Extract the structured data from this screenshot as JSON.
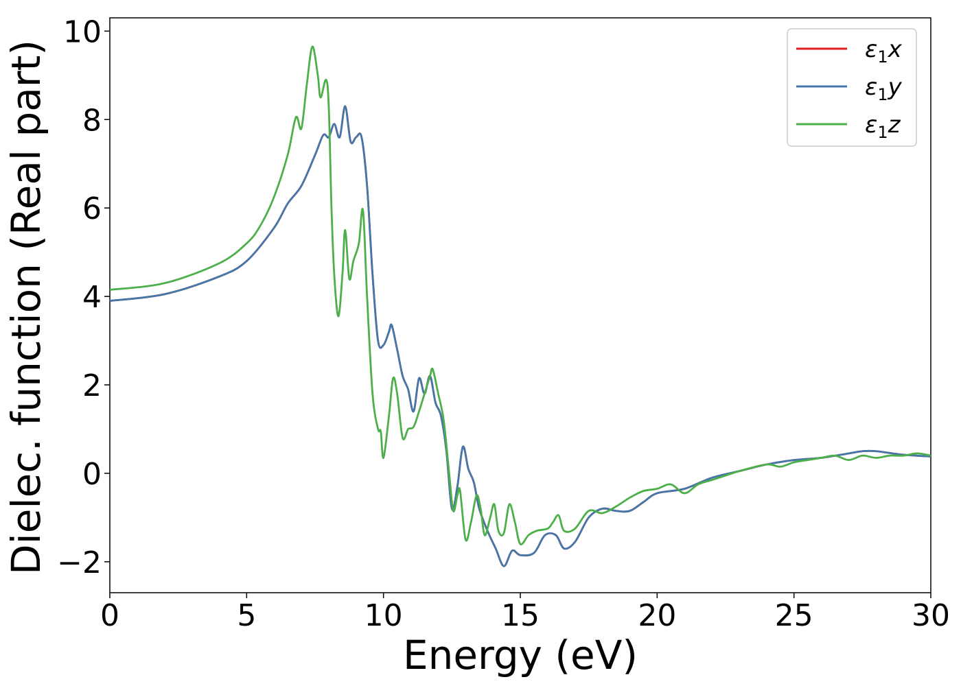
{
  "chart_data": {
    "type": "line",
    "xlabel": "Energy (eV)",
    "ylabel": "Dielec. function (Real part)",
    "xlim": [
      0,
      30
    ],
    "ylim": [
      -2.7,
      10.3
    ],
    "xticks": [
      0,
      5,
      10,
      15,
      20,
      25,
      30
    ],
    "xtick_labels": [
      "0",
      "5",
      "10",
      "15",
      "20",
      "25",
      "30"
    ],
    "yticks": [
      -2,
      0,
      2,
      4,
      6,
      8,
      10
    ],
    "ytick_labels": [
      "−2",
      "0",
      "2",
      "4",
      "6",
      "8",
      "10"
    ],
    "grid": false,
    "legend_position": "top-right",
    "series": [
      {
        "name": "ε₁x",
        "label_base": "ε",
        "label_sub": "1",
        "label_var": "x",
        "color": "#e41a1c",
        "points": [
          [
            0,
            3.9
          ],
          [
            2,
            4.05
          ],
          [
            4,
            4.45
          ],
          [
            5,
            4.8
          ],
          [
            6,
            5.55
          ],
          [
            6.5,
            6.1
          ],
          [
            7,
            6.5
          ],
          [
            7.5,
            7.2
          ],
          [
            7.8,
            7.65
          ],
          [
            8.0,
            7.6
          ],
          [
            8.2,
            7.9
          ],
          [
            8.4,
            7.6
          ],
          [
            8.6,
            8.3
          ],
          [
            8.8,
            7.5
          ],
          [
            9.0,
            7.6
          ],
          [
            9.2,
            7.6
          ],
          [
            9.4,
            6.5
          ],
          [
            9.6,
            4.5
          ],
          [
            9.8,
            3.0
          ],
          [
            10.0,
            2.9
          ],
          [
            10.2,
            3.2
          ],
          [
            10.3,
            3.35
          ],
          [
            10.5,
            2.8
          ],
          [
            10.7,
            2.2
          ],
          [
            10.9,
            1.9
          ],
          [
            11.1,
            1.4
          ],
          [
            11.3,
            2.15
          ],
          [
            11.5,
            1.8
          ],
          [
            11.7,
            2.2
          ],
          [
            11.9,
            1.6
          ],
          [
            12.1,
            1.3
          ],
          [
            12.3,
            0.5
          ],
          [
            12.5,
            -0.8
          ],
          [
            12.7,
            -0.3
          ],
          [
            12.9,
            0.6
          ],
          [
            13.1,
            0.1
          ],
          [
            13.3,
            -0.2
          ],
          [
            13.5,
            -0.8
          ],
          [
            13.8,
            -1.3
          ],
          [
            14.1,
            -1.7
          ],
          [
            14.4,
            -2.1
          ],
          [
            14.7,
            -1.75
          ],
          [
            15.0,
            -1.85
          ],
          [
            15.5,
            -1.8
          ],
          [
            15.9,
            -1.4
          ],
          [
            16.3,
            -1.4
          ],
          [
            16.6,
            -1.7
          ],
          [
            17.0,
            -1.55
          ],
          [
            17.5,
            -1.0
          ],
          [
            18.0,
            -0.8
          ],
          [
            18.5,
            -0.85
          ],
          [
            19.0,
            -0.85
          ],
          [
            19.5,
            -0.65
          ],
          [
            20.0,
            -0.45
          ],
          [
            21.0,
            -0.35
          ],
          [
            22.0,
            -0.1
          ],
          [
            23.0,
            0.05
          ],
          [
            24.0,
            0.2
          ],
          [
            25.0,
            0.3
          ],
          [
            26.0,
            0.35
          ],
          [
            27.0,
            0.45
          ],
          [
            27.5,
            0.5
          ],
          [
            28.0,
            0.5
          ],
          [
            29.0,
            0.42
          ],
          [
            30.0,
            0.38
          ]
        ]
      },
      {
        "name": "ε₁y",
        "label_base": "ε",
        "label_sub": "1",
        "label_var": "y",
        "color": "#4477aa",
        "points": [
          [
            0,
            3.9
          ],
          [
            2,
            4.05
          ],
          [
            4,
            4.45
          ],
          [
            5,
            4.8
          ],
          [
            6,
            5.55
          ],
          [
            6.5,
            6.1
          ],
          [
            7,
            6.5
          ],
          [
            7.5,
            7.2
          ],
          [
            7.8,
            7.65
          ],
          [
            8.0,
            7.6
          ],
          [
            8.2,
            7.9
          ],
          [
            8.4,
            7.6
          ],
          [
            8.6,
            8.3
          ],
          [
            8.8,
            7.5
          ],
          [
            9.0,
            7.6
          ],
          [
            9.2,
            7.6
          ],
          [
            9.4,
            6.5
          ],
          [
            9.6,
            4.5
          ],
          [
            9.8,
            3.0
          ],
          [
            10.0,
            2.9
          ],
          [
            10.2,
            3.2
          ],
          [
            10.3,
            3.35
          ],
          [
            10.5,
            2.8
          ],
          [
            10.7,
            2.2
          ],
          [
            10.9,
            1.9
          ],
          [
            11.1,
            1.4
          ],
          [
            11.3,
            2.15
          ],
          [
            11.5,
            1.8
          ],
          [
            11.7,
            2.2
          ],
          [
            11.9,
            1.6
          ],
          [
            12.1,
            1.3
          ],
          [
            12.3,
            0.5
          ],
          [
            12.5,
            -0.8
          ],
          [
            12.7,
            -0.3
          ],
          [
            12.9,
            0.6
          ],
          [
            13.1,
            0.1
          ],
          [
            13.3,
            -0.2
          ],
          [
            13.5,
            -0.8
          ],
          [
            13.8,
            -1.3
          ],
          [
            14.1,
            -1.7
          ],
          [
            14.4,
            -2.1
          ],
          [
            14.7,
            -1.75
          ],
          [
            15.0,
            -1.85
          ],
          [
            15.5,
            -1.8
          ],
          [
            15.9,
            -1.4
          ],
          [
            16.3,
            -1.4
          ],
          [
            16.6,
            -1.7
          ],
          [
            17.0,
            -1.55
          ],
          [
            17.5,
            -1.0
          ],
          [
            18.0,
            -0.8
          ],
          [
            18.5,
            -0.85
          ],
          [
            19.0,
            -0.85
          ],
          [
            19.5,
            -0.65
          ],
          [
            20.0,
            -0.45
          ],
          [
            21.0,
            -0.35
          ],
          [
            22.0,
            -0.1
          ],
          [
            23.0,
            0.05
          ],
          [
            24.0,
            0.2
          ],
          [
            25.0,
            0.3
          ],
          [
            26.0,
            0.35
          ],
          [
            27.0,
            0.45
          ],
          [
            27.5,
            0.5
          ],
          [
            28.0,
            0.5
          ],
          [
            29.0,
            0.42
          ],
          [
            30.0,
            0.38
          ]
        ]
      },
      {
        "name": "ε₁z",
        "label_base": "ε",
        "label_sub": "1",
        "label_var": "z",
        "color": "#4daf4a",
        "points": [
          [
            0,
            4.15
          ],
          [
            2,
            4.3
          ],
          [
            4,
            4.75
          ],
          [
            5,
            5.2
          ],
          [
            5.5,
            5.6
          ],
          [
            6,
            6.25
          ],
          [
            6.5,
            7.2
          ],
          [
            6.8,
            8.05
          ],
          [
            7.0,
            7.8
          ],
          [
            7.2,
            8.8
          ],
          [
            7.4,
            9.65
          ],
          [
            7.6,
            9.0
          ],
          [
            7.7,
            8.5
          ],
          [
            7.9,
            8.9
          ],
          [
            8.0,
            8.3
          ],
          [
            8.1,
            6.0
          ],
          [
            8.2,
            4.5
          ],
          [
            8.35,
            3.55
          ],
          [
            8.5,
            4.5
          ],
          [
            8.6,
            5.5
          ],
          [
            8.75,
            4.4
          ],
          [
            8.9,
            4.8
          ],
          [
            9.1,
            5.2
          ],
          [
            9.25,
            5.95
          ],
          [
            9.4,
            4.0
          ],
          [
            9.6,
            1.8
          ],
          [
            9.8,
            1.0
          ],
          [
            9.9,
            0.95
          ],
          [
            10.0,
            0.35
          ],
          [
            10.2,
            1.3
          ],
          [
            10.35,
            2.15
          ],
          [
            10.5,
            1.8
          ],
          [
            10.7,
            0.8
          ],
          [
            10.9,
            1.0
          ],
          [
            11.1,
            1.05
          ],
          [
            11.3,
            1.4
          ],
          [
            11.5,
            1.8
          ],
          [
            11.7,
            2.2
          ],
          [
            11.8,
            2.35
          ],
          [
            12.0,
            1.8
          ],
          [
            12.2,
            1.2
          ],
          [
            12.4,
            0.0
          ],
          [
            12.55,
            -0.85
          ],
          [
            12.7,
            -0.5
          ],
          [
            12.8,
            -0.4
          ],
          [
            13.0,
            -1.5
          ],
          [
            13.2,
            -1.1
          ],
          [
            13.4,
            -0.5
          ],
          [
            13.55,
            -0.8
          ],
          [
            13.7,
            -1.4
          ],
          [
            13.9,
            -1.0
          ],
          [
            14.05,
            -0.7
          ],
          [
            14.2,
            -1.3
          ],
          [
            14.4,
            -1.35
          ],
          [
            14.6,
            -0.7
          ],
          [
            14.8,
            -1.1
          ],
          [
            15.0,
            -1.6
          ],
          [
            15.3,
            -1.4
          ],
          [
            15.6,
            -1.3
          ],
          [
            16.0,
            -1.25
          ],
          [
            16.2,
            -1.1
          ],
          [
            16.4,
            -0.95
          ],
          [
            16.6,
            -1.3
          ],
          [
            17.0,
            -1.25
          ],
          [
            17.5,
            -0.85
          ],
          [
            18.0,
            -0.9
          ],
          [
            18.5,
            -0.75
          ],
          [
            19.0,
            -0.55
          ],
          [
            19.5,
            -0.4
          ],
          [
            20.0,
            -0.35
          ],
          [
            20.5,
            -0.25
          ],
          [
            21.0,
            -0.45
          ],
          [
            21.5,
            -0.25
          ],
          [
            22.0,
            -0.15
          ],
          [
            22.5,
            -0.05
          ],
          [
            23.0,
            0.05
          ],
          [
            24.0,
            0.2
          ],
          [
            24.5,
            0.15
          ],
          [
            25.0,
            0.25
          ],
          [
            25.5,
            0.3
          ],
          [
            26.0,
            0.35
          ],
          [
            26.5,
            0.4
          ],
          [
            27.0,
            0.3
          ],
          [
            27.5,
            0.4
          ],
          [
            28.0,
            0.35
          ],
          [
            28.5,
            0.4
          ],
          [
            29.0,
            0.4
          ],
          [
            29.5,
            0.45
          ],
          [
            30.0,
            0.4
          ]
        ]
      }
    ]
  }
}
